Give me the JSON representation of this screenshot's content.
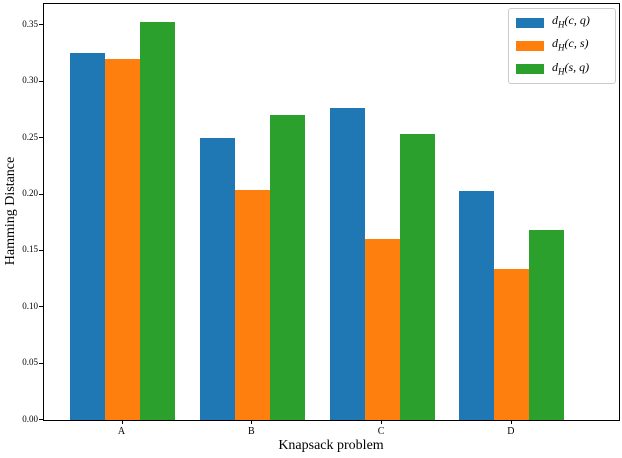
{
  "figure": {
    "background": "#ffffff",
    "spine_color": "#000000",
    "legend_border_color": "#cccccc"
  },
  "chart_data": {
    "type": "bar",
    "title": "",
    "xlabel": "Knapsack problem",
    "ylabel": "Hamming Distance",
    "categories": [
      "A",
      "B",
      "C",
      "D"
    ],
    "series": [
      {
        "name": "d_H(c, q)",
        "name_parts": {
          "base": "d",
          "sub": "H",
          "args": "(c, q)"
        },
        "color": "#1f77b4",
        "values": [
          0.326,
          0.25,
          0.277,
          0.203
        ]
      },
      {
        "name": "d_H(c, s)",
        "name_parts": {
          "base": "d",
          "sub": "H",
          "args": "(c, s)"
        },
        "color": "#ff7f0e",
        "values": [
          0.32,
          0.204,
          0.161,
          0.134
        ]
      },
      {
        "name": "d_H(s, q)",
        "name_parts": {
          "base": "d",
          "sub": "H",
          "args": "(s, q)"
        },
        "color": "#2ca02c",
        "values": [
          0.353,
          0.271,
          0.254,
          0.169
        ]
      }
    ],
    "yticks": [
      "0.00",
      "0.05",
      "0.10",
      "0.15",
      "0.20",
      "0.25",
      "0.30",
      "0.35"
    ],
    "ylim": [
      0,
      0.369
    ],
    "grid": false,
    "legend_position": "upper right"
  }
}
